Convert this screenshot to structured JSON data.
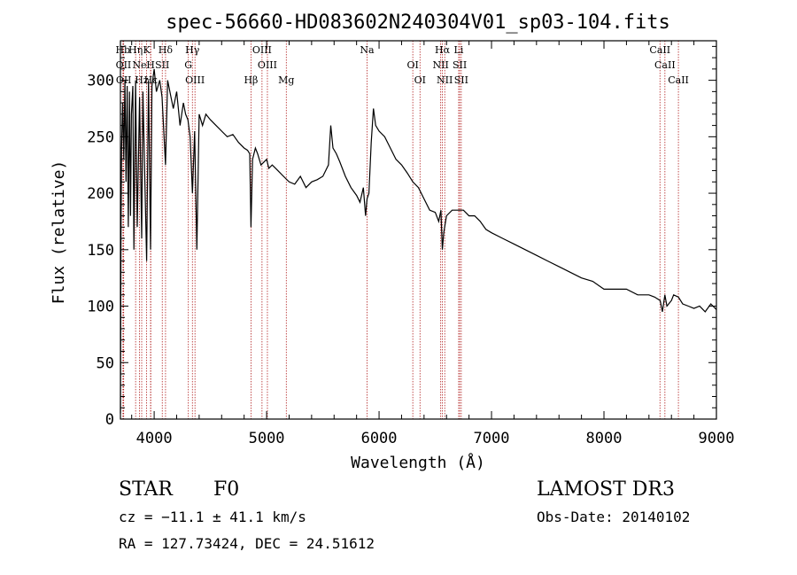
{
  "chart_data": {
    "type": "line",
    "title": "spec-56660-HD083602N240304V01_sp03-104.fits",
    "xlabel": "Wavelength (Å)",
    "ylabel": "Flux (relative)",
    "xlim": [
      3700,
      9000
    ],
    "ylim": [
      0,
      335
    ],
    "xticks": [
      4000,
      5000,
      6000,
      7000,
      8000,
      9000
    ],
    "yticks": [
      0,
      50,
      100,
      150,
      200,
      250,
      300
    ],
    "grid": false,
    "line_color": "#000000",
    "marker_color": "#b22222",
    "series": [
      {
        "x": [
          3700,
          3705,
          3710,
          3720,
          3730,
          3740,
          3750,
          3760,
          3770,
          3780,
          3790,
          3798,
          3810,
          3820,
          3835,
          3850,
          3870,
          3889,
          3900,
          3920,
          3933,
          3950,
          3968,
          3980,
          4000,
          4020,
          4050,
          4070,
          4101,
          4120,
          4150,
          4170,
          4200,
          4230,
          4260,
          4280,
          4300,
          4320,
          4340,
          4360,
          4380,
          4400,
          4430,
          4460,
          4500,
          4550,
          4600,
          4650,
          4700,
          4750,
          4800,
          4830,
          4850,
          4861,
          4875,
          4900,
          4920,
          4950,
          4980,
          5000,
          5020,
          5050,
          5100,
          5150,
          5200,
          5250,
          5300,
          5350,
          5400,
          5450,
          5500,
          5550,
          5570,
          5590,
          5620,
          5650,
          5700,
          5750,
          5800,
          5830,
          5860,
          5880,
          5893,
          5910,
          5930,
          5950,
          5970,
          6000,
          6050,
          6100,
          6150,
          6200,
          6250,
          6300,
          6350,
          6400,
          6450,
          6500,
          6530,
          6550,
          6563,
          6575,
          6600,
          6650,
          6700,
          6750,
          6800,
          6850,
          6900,
          6950,
          7000,
          7100,
          7200,
          7300,
          7400,
          7500,
          7600,
          7700,
          7800,
          7900,
          8000,
          8100,
          8200,
          8300,
          8400,
          8450,
          8500,
          8520,
          8542,
          8560,
          8600,
          8620,
          8662,
          8700,
          8750,
          8800,
          8850,
          8900,
          8950,
          9000
        ],
        "values": [
          5,
          160,
          240,
          280,
          230,
          300,
          210,
          295,
          170,
          290,
          180,
          270,
          295,
          150,
          300,
          170,
          285,
          160,
          290,
          200,
          140,
          300,
          150,
          295,
          310,
          290,
          300,
          285,
          225,
          300,
          285,
          275,
          290,
          260,
          280,
          270,
          265,
          250,
          200,
          255,
          150,
          270,
          260,
          270,
          265,
          260,
          255,
          250,
          252,
          245,
          240,
          238,
          235,
          170,
          230,
          240,
          235,
          225,
          228,
          230,
          222,
          225,
          220,
          215,
          210,
          208,
          215,
          205,
          210,
          212,
          215,
          225,
          260,
          240,
          235,
          228,
          215,
          205,
          198,
          192,
          205,
          180,
          195,
          200,
          245,
          275,
          260,
          255,
          250,
          240,
          230,
          225,
          218,
          210,
          205,
          195,
          185,
          183,
          175,
          185,
          150,
          165,
          180,
          185,
          185,
          185,
          180,
          180,
          175,
          168,
          165,
          160,
          155,
          150,
          145,
          140,
          135,
          130,
          125,
          122,
          115,
          115,
          115,
          110,
          110,
          108,
          105,
          95,
          110,
          100,
          105,
          110,
          108,
          102,
          100,
          98,
          100,
          95,
          102,
          97
        ]
      }
    ],
    "lines": [
      {
        "label": "Hb",
        "x": 3722
      },
      {
        "label": "OII",
        "x": 3727
      },
      {
        "label": "OII",
        "x": 3729
      },
      {
        "label": "Hη",
        "x": 3835
      },
      {
        "label": "Ne",
        "x": 3869
      },
      {
        "label": "Hz",
        "x": 3889
      },
      {
        "label": "K",
        "x": 3933
      },
      {
        "label": "H",
        "x": 3968
      },
      {
        "label": "Hε",
        "x": 3970
      },
      {
        "label": "Hδ",
        "x": 4101
      },
      {
        "label": "SII",
        "x": 4072
      },
      {
        "label": "OIII",
        "x": 4363
      },
      {
        "label": "Hγ",
        "x": 4340
      },
      {
        "label": "G",
        "x": 4304
      },
      {
        "label": "Hβ",
        "x": 4861
      },
      {
        "label": "OIII",
        "x": 4959
      },
      {
        "label": "OIII",
        "x": 5007
      },
      {
        "label": "Mg",
        "x": 5175
      },
      {
        "label": "Na",
        "x": 5893
      },
      {
        "label": "OI",
        "x": 6300
      },
      {
        "label": "OI",
        "x": 6364
      },
      {
        "label": "Hα",
        "x": 6563
      },
      {
        "label": "NII",
        "x": 6548
      },
      {
        "label": "NII",
        "x": 6584
      },
      {
        "label": "Li",
        "x": 6708
      },
      {
        "label": "SII",
        "x": 6717
      },
      {
        "label": "SII",
        "x": 6731
      },
      {
        "label": "CaII",
        "x": 8498
      },
      {
        "label": "CaII",
        "x": 8542
      },
      {
        "label": "CaII",
        "x": 8662
      }
    ]
  },
  "info": {
    "class": "STAR",
    "subclass": "F0",
    "survey": "LAMOST DR3",
    "cz": "cz = −11.1 ± 41.1 km/s",
    "obs_date": "Obs-Date: 20140102",
    "radec": "RA = 127.73424, DEC =  24.51612"
  }
}
